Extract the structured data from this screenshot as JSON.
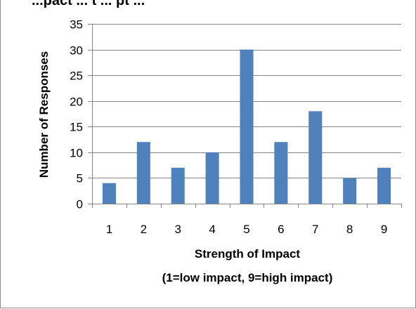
{
  "chart_data": {
    "type": "bar",
    "title_fragment": "...pact ... t ... pt ...",
    "categories": [
      "1",
      "2",
      "3",
      "4",
      "5",
      "6",
      "7",
      "8",
      "9"
    ],
    "series": [
      {
        "values": [
          4,
          12,
          7,
          10,
          30,
          12,
          18,
          5,
          7
        ]
      }
    ],
    "xlabel": "Strength of Impact",
    "xlabel_sub": "(1=low impact, 9=high impact)",
    "ylabel": "Number of Responses",
    "ylim": [
      0,
      35
    ],
    "yticks": [
      0,
      5,
      10,
      15,
      20,
      25,
      30,
      35
    ],
    "grid": "horizontal",
    "bar_color": "#4f81bd",
    "gridline_color": "#868686"
  }
}
